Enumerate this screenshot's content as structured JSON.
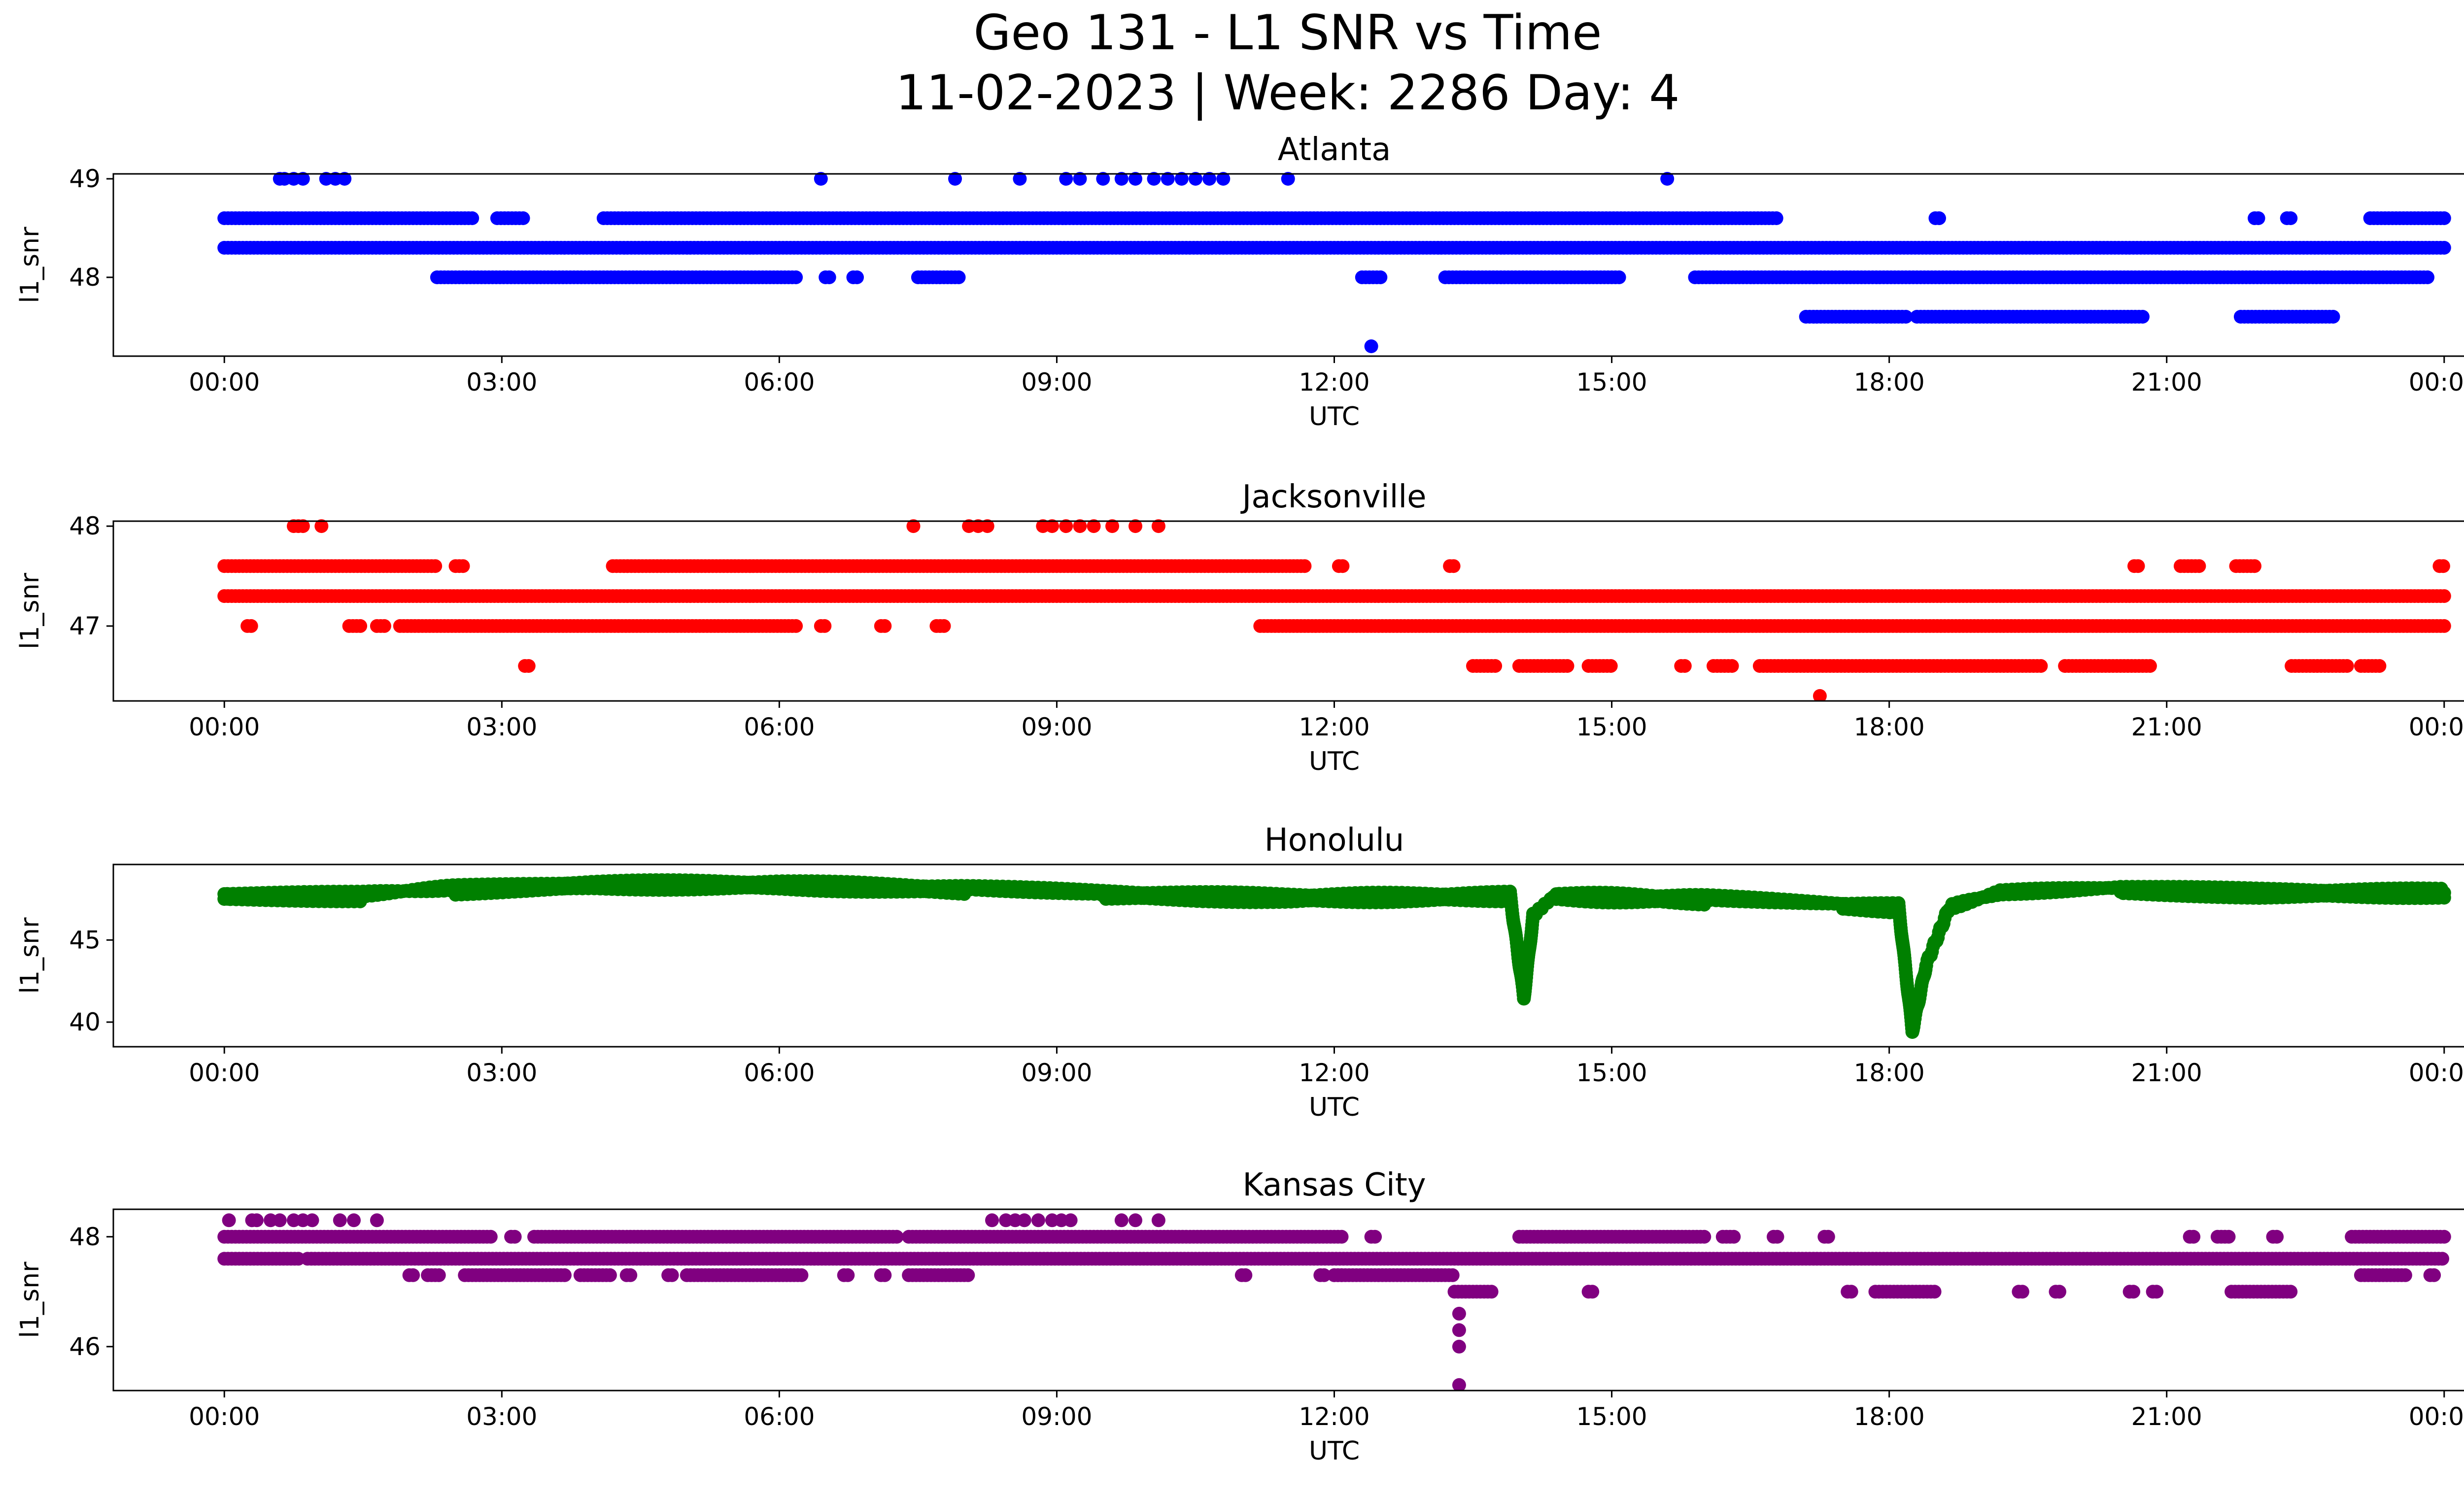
{
  "figure": {
    "title_line1": "Geo 131 - L1 SNR vs Time",
    "title_line2": "11-02-2023 | Week: 2286 Day: 4"
  },
  "chart_data": [
    {
      "type": "scatter",
      "title": "Atlanta",
      "xlabel": "UTC",
      "ylabel": "l1_snr",
      "color": "#0000ff",
      "xticks": [
        "00:00",
        "03:00",
        "06:00",
        "09:00",
        "12:00",
        "15:00",
        "18:00",
        "21:00",
        "00:00"
      ],
      "xlim_hours": [
        -1.2,
        25.2
      ],
      "ylim": [
        47.2,
        49.05
      ],
      "yticks": [
        48,
        49
      ],
      "series": [
        {
          "y": 48.3,
          "segments": [
            [
              0.0,
              24.0
            ]
          ]
        },
        {
          "y": 48.6,
          "segments": [
            [
              0.0,
              2.7
            ],
            [
              2.95,
              3.25
            ],
            [
              4.1,
              16.8
            ],
            [
              18.5,
              18.55
            ],
            [
              21.95,
              22.0
            ],
            [
              22.3,
              22.35
            ],
            [
              23.2,
              24.0
            ]
          ]
        },
        {
          "y": 48.0,
          "segments": [
            [
              2.3,
              6.2
            ],
            [
              6.5,
              6.55
            ],
            [
              6.8,
              6.85
            ],
            [
              7.5,
              7.95
            ],
            [
              12.3,
              12.5
            ],
            [
              13.2,
              15.1
            ],
            [
              15.9,
              23.85
            ]
          ]
        },
        {
          "y": 47.6,
          "segments": [
            [
              17.1,
              18.2
            ],
            [
              18.3,
              20.75
            ],
            [
              21.8,
              22.8
            ]
          ]
        },
        {
          "y": 49.0,
          "points": [
            0.6,
            0.65,
            0.75,
            0.85,
            1.1,
            1.2,
            1.3,
            6.45,
            7.9,
            8.6,
            9.1,
            9.25,
            9.5,
            9.7,
            9.85,
            10.05,
            10.2,
            10.35,
            10.5,
            10.65,
            10.8,
            11.5,
            15.6
          ]
        },
        {
          "y": 47.3,
          "points": [
            12.4
          ]
        }
      ]
    },
    {
      "type": "scatter",
      "title": "Jacksonville",
      "xlabel": "UTC",
      "ylabel": "l1_snr",
      "color": "#ff0000",
      "xticks": [
        "00:00",
        "03:00",
        "06:00",
        "09:00",
        "12:00",
        "15:00",
        "18:00",
        "21:00",
        "00:00"
      ],
      "xlim_hours": [
        -1.2,
        25.2
      ],
      "ylim": [
        46.25,
        48.05
      ],
      "yticks": [
        47,
        48
      ],
      "series": [
        {
          "y": 47.3,
          "segments": [
            [
              0.0,
              24.0
            ]
          ]
        },
        {
          "y": 47.6,
          "segments": [
            [
              0.0,
              2.3
            ],
            [
              2.5,
              2.6
            ],
            [
              4.2,
              11.7
            ],
            [
              12.05,
              12.1
            ],
            [
              13.25,
              13.3
            ],
            [
              20.65,
              20.7
            ],
            [
              21.15,
              21.35
            ],
            [
              21.75,
              21.95
            ],
            [
              23.95,
              24.0
            ]
          ]
        },
        {
          "y": 47.0,
          "segments": [
            [
              0.25,
              0.3
            ],
            [
              1.35,
              1.5
            ],
            [
              1.65,
              1.75
            ],
            [
              1.9,
              6.2
            ],
            [
              6.45,
              6.5
            ],
            [
              7.1,
              7.15
            ],
            [
              7.7,
              7.8
            ],
            [
              11.2,
              24.0
            ]
          ]
        },
        {
          "y": 46.6,
          "segments": [
            [
              3.25,
              3.3
            ],
            [
              13.5,
              13.75
            ],
            [
              14.0,
              14.55
            ],
            [
              14.75,
              15.0
            ],
            [
              15.75,
              15.8
            ],
            [
              16.1,
              16.3
            ],
            [
              16.6,
              19.65
            ],
            [
              19.9,
              20.85
            ],
            [
              22.35,
              22.95
            ],
            [
              23.1,
              23.3
            ]
          ]
        },
        {
          "y": 48.0,
          "points": [
            0.75,
            0.8,
            0.85,
            1.05,
            7.45,
            8.05,
            8.15,
            8.25,
            8.85,
            8.95,
            9.1,
            9.25,
            9.4,
            9.6,
            9.85,
            10.1
          ]
        },
        {
          "y": 46.3,
          "points": [
            17.25
          ]
        }
      ]
    },
    {
      "type": "scatter",
      "title": "Honolulu",
      "xlabel": "UTC",
      "ylabel": "l1_snr",
      "color": "#008000",
      "xticks": [
        "00:00",
        "03:00",
        "06:00",
        "09:00",
        "12:00",
        "15:00",
        "18:00",
        "21:00",
        "00:00"
      ],
      "xlim_hours": [
        -1.2,
        25.2
      ],
      "ylim": [
        38.5,
        49.6
      ],
      "yticks": [
        40,
        45
      ],
      "trend": [
        [
          0.0,
          47.8
        ],
        [
          1.5,
          47.8
        ],
        [
          2.5,
          48.2
        ],
        [
          4.0,
          48.5
        ],
        [
          6.0,
          48.5
        ],
        [
          8.0,
          48.2
        ],
        [
          9.5,
          47.9
        ],
        [
          11.5,
          47.7
        ],
        [
          13.9,
          47.8
        ],
        [
          14.05,
          41.5
        ],
        [
          14.15,
          46.5
        ],
        [
          14.4,
          47.8
        ],
        [
          16.0,
          47.6
        ],
        [
          17.5,
          47.2
        ],
        [
          18.1,
          47.1
        ],
        [
          18.25,
          39.5
        ],
        [
          18.4,
          43.5
        ],
        [
          18.65,
          47.0
        ],
        [
          19.2,
          47.9
        ],
        [
          20.5,
          48.2
        ],
        [
          22.0,
          48.0
        ],
        [
          24.0,
          48.0
        ]
      ]
    },
    {
      "type": "scatter",
      "title": "Kansas City",
      "xlabel": "UTC",
      "ylabel": "l1_snr",
      "color": "#800080",
      "xticks": [
        "00:00",
        "03:00",
        "06:00",
        "09:00",
        "12:00",
        "15:00",
        "18:00",
        "21:00",
        "00:00"
      ],
      "xlim_hours": [
        -1.2,
        25.2
      ],
      "ylim": [
        45.2,
        48.5
      ],
      "yticks": [
        46,
        48
      ],
      "series": [
        {
          "y": 47.6,
          "segments": [
            [
              0.0,
              0.8
            ],
            [
              0.9,
              24.0
            ]
          ]
        },
        {
          "y": 48.0,
          "segments": [
            [
              0.0,
              2.9
            ],
            [
              3.1,
              3.15
            ],
            [
              3.35,
              7.3
            ],
            [
              7.4,
              12.1
            ],
            [
              12.4,
              12.45
            ],
            [
              14.0,
              16.0
            ],
            [
              16.2,
              16.35
            ],
            [
              16.75,
              16.8
            ],
            [
              17.3,
              17.35
            ],
            [
              21.25,
              21.3
            ],
            [
              21.55,
              21.7
            ],
            [
              22.15,
              22.2
            ],
            [
              23.0,
              24.0
            ]
          ]
        },
        {
          "y": 48.3,
          "points": [
            0.05,
            0.3,
            0.35,
            0.5,
            0.6,
            0.75,
            0.85,
            0.95,
            1.25,
            1.4,
            1.65,
            8.3,
            8.45,
            8.55,
            8.65,
            8.8,
            8.95,
            9.05,
            9.15,
            9.7,
            9.85,
            10.1
          ]
        },
        {
          "y": 47.3,
          "segments": [
            [
              2.0,
              2.05
            ],
            [
              2.2,
              2.35
            ],
            [
              2.6,
              3.7
            ],
            [
              3.85,
              4.2
            ],
            [
              4.35,
              4.4
            ],
            [
              4.8,
              4.85
            ],
            [
              5.0,
              6.25
            ],
            [
              6.7,
              6.75
            ],
            [
              7.1,
              7.15
            ],
            [
              7.4,
              8.05
            ],
            [
              11.0,
              11.05
            ],
            [
              11.85,
              11.9
            ],
            [
              12.0,
              12.1
            ]
          ]
        },
        {
          "y": 47.0,
          "segments": [
            [
              13.3,
              13.7
            ],
            [
              14.75,
              14.8
            ],
            [
              17.55,
              17.6
            ],
            [
              17.85,
              18.5
            ],
            [
              19.4,
              19.45
            ],
            [
              19.8,
              19.85
            ],
            [
              20.6,
              20.65
            ],
            [
              20.85,
              20.9
            ],
            [
              21.7,
              22.35
            ]
          ]
        },
        {
          "y": 47.3,
          "segments": [
            [
              12.0,
              13.3
            ],
            [
              23.1,
              23.6
            ],
            [
              23.85,
              23.9
            ]
          ]
        },
        {
          "y": 46.6,
          "points": [
            13.35
          ]
        },
        {
          "y": 46.3,
          "points": [
            13.35
          ]
        },
        {
          "y": 46.0,
          "points": [
            13.35
          ]
        },
        {
          "y": 45.3,
          "points": [
            13.35
          ]
        }
      ]
    }
  ]
}
